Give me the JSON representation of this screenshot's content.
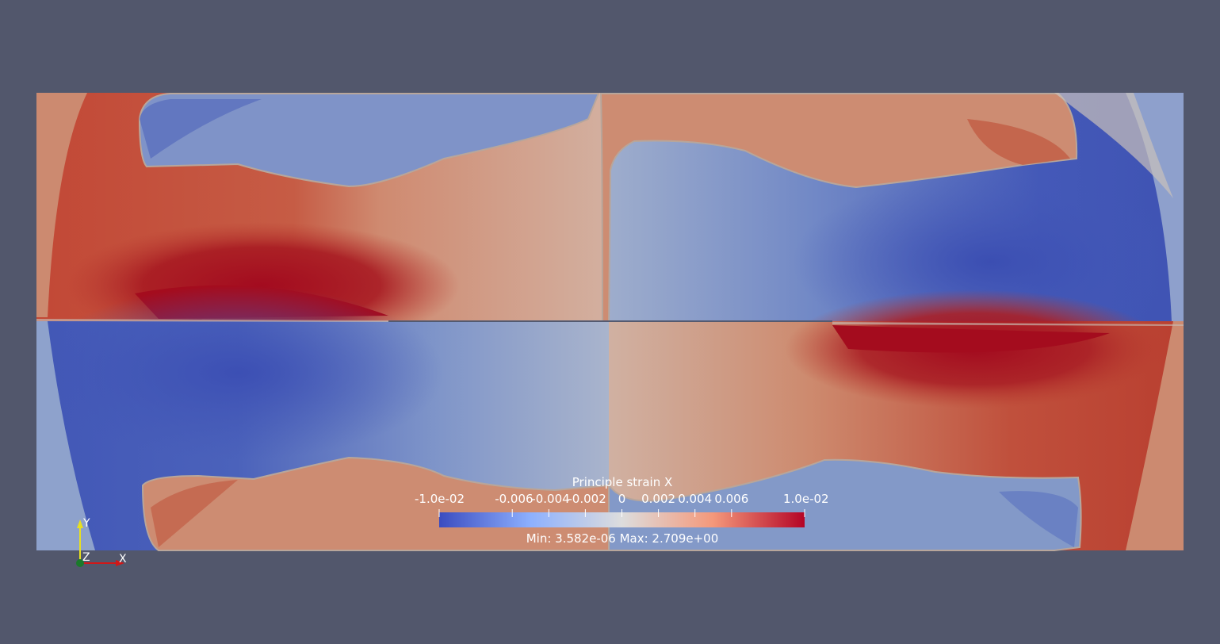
{
  "colorbar": {
    "title": "Principle strain X",
    "min_label": "-1.0e-02",
    "max_label": "1.0e-02",
    "ticks": [
      "-0.006",
      "-0.004",
      "-0.002",
      "0",
      "0.002",
      "0.004",
      "0.006"
    ],
    "range_text": "Min: 3.582e-06  Max: 2.709e+00",
    "scale_min": -0.01,
    "scale_max": 0.01,
    "colors": [
      "#3b4cc0",
      "#8db0fe",
      "#dddddd",
      "#f4987a",
      "#b40426"
    ]
  },
  "axes": {
    "x_label": "X",
    "y_label": "Y",
    "z_label": "Z"
  },
  "colors": {
    "background": "#52576c",
    "red_strong": "#a40c1e",
    "red": "#c8553f",
    "red_light": "#d0947b",
    "blue_strong": "#3e54b5",
    "blue": "#6b84c6",
    "blue_light": "#8ea2cc",
    "neutral": "#c6c2bc"
  }
}
